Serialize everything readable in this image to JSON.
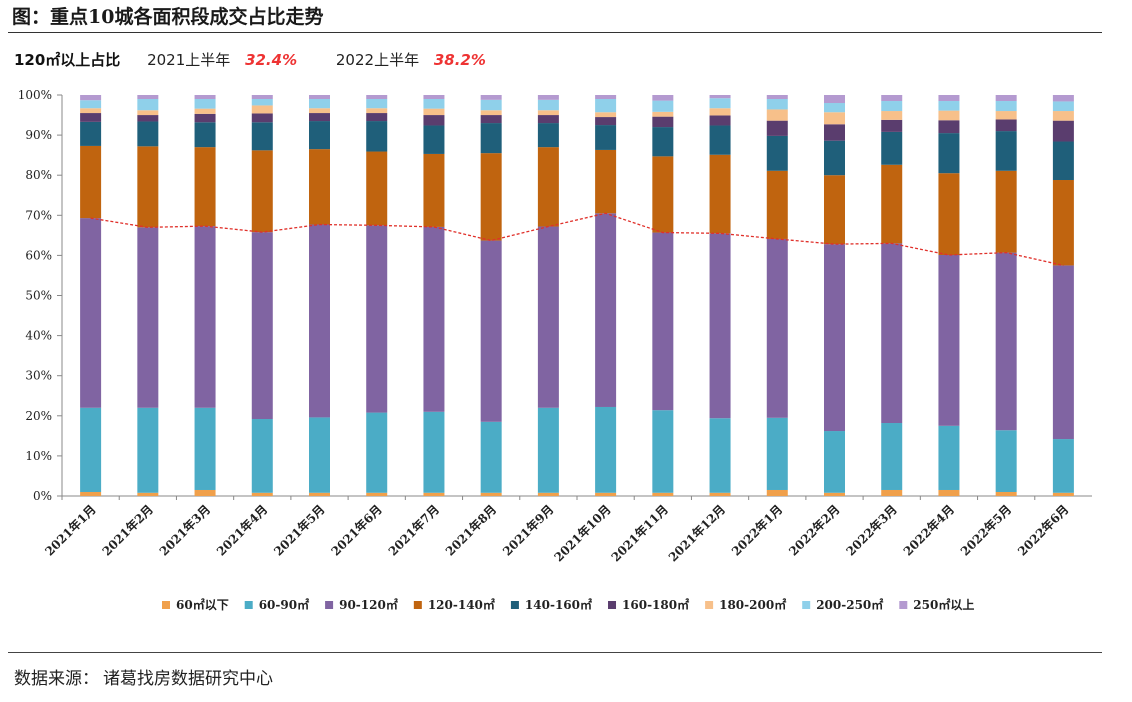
{
  "header": {
    "title": "图：重点10城各面积段成交占比走势"
  },
  "summary": {
    "label": "120㎡以上占比",
    "items": [
      {
        "year": "2021上半年",
        "value": "32.4%"
      },
      {
        "year": "2022上半年",
        "value": "38.2%"
      }
    ]
  },
  "footer": {
    "source_label": "数据来源：",
    "source_value": "诸葛找房数据研究中心"
  },
  "colors": {
    "60㎡以下": "#f0a04b",
    "60-90㎡": "#4bacc6",
    "90-120㎡": "#8064a2",
    "120-140㎡": "#c0640f",
    "140-160㎡": "#1f5f7a",
    "160-180㎡": "#5a3d6e",
    "180-200㎡": "#f7c08a",
    "200-250㎡": "#8fd0ea",
    "250㎡以上": "#b49ad0",
    "trend_line": "#e0302a"
  },
  "chart_data": {
    "type": "bar",
    "stacked": true,
    "categories": [
      "2021年1月",
      "2021年2月",
      "2021年3月",
      "2021年4月",
      "2021年5月",
      "2021年6月",
      "2021年7月",
      "2021年8月",
      "2021年9月",
      "2021年10月",
      "2021年11月",
      "2021年12月",
      "2022年1月",
      "2022年2月",
      "2022年3月",
      "2022年4月",
      "2022年5月",
      "2022年6月"
    ],
    "ylim": [
      0,
      100
    ],
    "yticks": [
      "0%",
      "10%",
      "20%",
      "30%",
      "40%",
      "50%",
      "60%",
      "70%",
      "80%",
      "90%",
      "100%"
    ],
    "legend_position": "bottom",
    "series": [
      {
        "name": "60㎡以下",
        "values": [
          1.0,
          0.8,
          1.5,
          0.8,
          0.8,
          0.8,
          0.8,
          0.8,
          0.8,
          0.8,
          0.8,
          0.8,
          1.5,
          0.8,
          1.5,
          1.5,
          1.0,
          0.8
        ]
      },
      {
        "name": "60-90㎡",
        "values": [
          21.0,
          21.2,
          20.5,
          18.4,
          18.8,
          20.0,
          20.2,
          17.7,
          21.2,
          21.4,
          20.6,
          18.6,
          18.0,
          15.4,
          16.7,
          16.0,
          15.4,
          13.4
        ]
      },
      {
        "name": "90-120㎡",
        "values": [
          47.3,
          45.0,
          45.3,
          46.6,
          48.1,
          46.7,
          46.1,
          45.2,
          45.2,
          48.3,
          44.3,
          46.1,
          44.6,
          46.6,
          44.8,
          42.6,
          44.3,
          43.3
        ]
      },
      {
        "name": "120-140㎡",
        "values": [
          18.0,
          20.2,
          19.7,
          20.4,
          18.8,
          18.4,
          18.2,
          21.8,
          19.8,
          15.8,
          19.0,
          19.6,
          17.0,
          17.2,
          19.6,
          20.4,
          20.4,
          21.3
        ]
      },
      {
        "name": "140-160㎡",
        "values": [
          6.0,
          6.2,
          6.2,
          7.0,
          7.0,
          7.6,
          7.1,
          7.5,
          6.0,
          6.2,
          7.3,
          7.3,
          8.7,
          8.6,
          8.2,
          10.0,
          9.9,
          9.6
        ]
      },
      {
        "name": "160-180㎡",
        "values": [
          2.2,
          1.6,
          2.1,
          2.2,
          2.0,
          2.0,
          2.6,
          2.0,
          2.0,
          2.0,
          2.6,
          2.5,
          3.8,
          4.1,
          3.0,
          3.2,
          2.9,
          5.2
        ]
      },
      {
        "name": "180-200㎡",
        "values": [
          1.2,
          1.2,
          1.3,
          2.0,
          1.2,
          1.2,
          1.6,
          1.2,
          1.2,
          1.2,
          1.2,
          1.8,
          2.8,
          3.0,
          2.2,
          2.4,
          2.1,
          2.4
        ]
      },
      {
        "name": "200-250㎡",
        "values": [
          2.0,
          2.8,
          2.4,
          1.6,
          2.3,
          2.3,
          2.4,
          2.6,
          2.6,
          3.3,
          2.8,
          2.5,
          2.6,
          2.3,
          2.5,
          2.4,
          2.5,
          2.4
        ]
      },
      {
        "name": "250㎡以上",
        "values": [
          1.3,
          1.0,
          1.0,
          1.0,
          1.0,
          1.0,
          1.0,
          1.2,
          1.2,
          1.0,
          1.4,
          0.8,
          1.0,
          2.0,
          1.5,
          1.5,
          1.5,
          1.6
        ]
      }
    ],
    "trend_line": {
      "description_series": "cumulative share below 120㎡",
      "values": [
        69.3,
        67.0,
        67.3,
        65.8,
        67.7,
        67.5,
        67.1,
        63.7,
        67.2,
        70.5,
        65.7,
        65.5,
        64.1,
        62.8,
        63.0,
        60.1,
        60.7,
        57.5
      ]
    }
  }
}
